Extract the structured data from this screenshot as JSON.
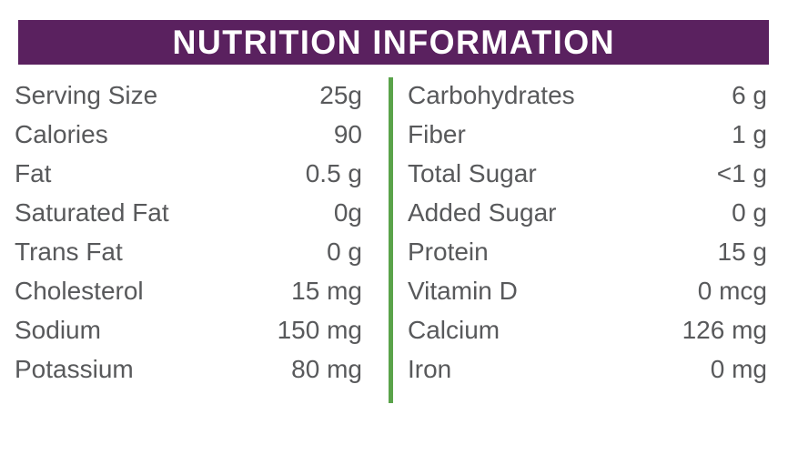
{
  "title": "NUTRITION INFORMATION",
  "colors": {
    "header-bg": "#5a215f",
    "header-text": "#ffffff",
    "divider-green": "#5aa34a",
    "body-text": "#58595b"
  },
  "columns": {
    "left": [
      {
        "label": "Serving Size",
        "value": "25g"
      },
      {
        "label": "Calories",
        "value": "90"
      },
      {
        "label": "Fat",
        "value": "0.5 g"
      },
      {
        "label": "Saturated Fat",
        "value": "0g"
      },
      {
        "label": "Trans Fat",
        "value": "0 g"
      },
      {
        "label": "Cholesterol",
        "value": "15 mg"
      },
      {
        "label": "Sodium",
        "value": "150 mg"
      },
      {
        "label": "Potassium",
        "value": "80 mg"
      }
    ],
    "right": [
      {
        "label": "Carbohydrates",
        "value": "6 g"
      },
      {
        "label": "Fiber",
        "value": "1 g"
      },
      {
        "label": "Total Sugar",
        "value": "<1 g"
      },
      {
        "label": "Added Sugar",
        "value": "0 g"
      },
      {
        "label": "Protein",
        "value": "15 g"
      },
      {
        "label": "Vitamin D",
        "value": "0 mcg"
      },
      {
        "label": "Calcium",
        "value": "126 mg"
      },
      {
        "label": "Iron",
        "value": "0 mg"
      }
    ]
  }
}
